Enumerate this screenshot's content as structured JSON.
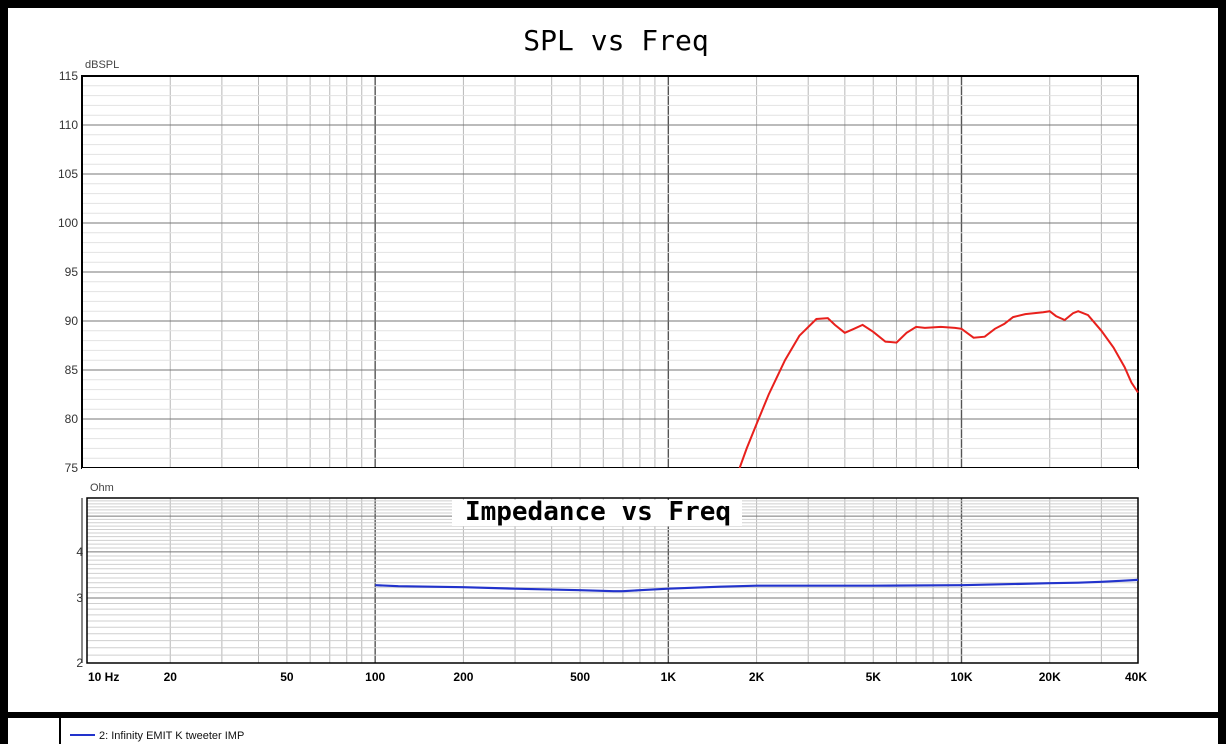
{
  "chart_data": [
    {
      "type": "line",
      "title": "SPL vs Freq",
      "ylabel": "dBSPL",
      "xscale": "log",
      "xlim": [
        10,
        40000
      ],
      "ylim": [
        75,
        115
      ],
      "yticks": [
        115,
        110,
        105,
        100,
        95,
        90,
        85,
        80,
        75
      ],
      "grid": true,
      "series": [
        {
          "color": "#e8201c",
          "x": [
            1750,
            1850,
            2000,
            2200,
            2500,
            2800,
            3200,
            3500,
            3700,
            4000,
            4300,
            4600,
            5000,
            5500,
            6000,
            6500,
            7000,
            7500,
            8500,
            9500,
            10000,
            11000,
            12000,
            13000,
            14000,
            15000,
            16500,
            19000,
            20000,
            21000,
            22500,
            24000,
            25000,
            27000,
            30000,
            33000,
            36000,
            38000,
            40000
          ],
          "y": [
            75,
            77,
            79.5,
            82.5,
            86,
            88.5,
            90.2,
            90.3,
            89.6,
            88.8,
            89.2,
            89.6,
            88.9,
            87.9,
            87.8,
            88.8,
            89.4,
            89.3,
            89.4,
            89.3,
            89.2,
            88.3,
            88.4,
            89.2,
            89.7,
            90.4,
            90.7,
            90.9,
            91,
            90.5,
            90.1,
            90.8,
            91,
            90.6,
            89,
            87.3,
            85.3,
            83.7,
            82.7
          ]
        }
      ]
    },
    {
      "type": "line",
      "title": "Impedance vs Freq",
      "ylabel": "Ohm",
      "xscale": "log",
      "xlim": [
        10,
        40000
      ],
      "yscale": "log",
      "ylim": [
        2,
        5.6
      ],
      "yticks": [
        4,
        3,
        2
      ],
      "xticks": [
        "10 Hz",
        "20",
        "50",
        "100",
        "200",
        "500",
        "1K",
        "2K",
        "5K",
        "10K",
        "20K",
        "40K"
      ],
      "grid": true,
      "series": [
        {
          "color": "#2233cc",
          "x": [
            100,
            120,
            200,
            300,
            500,
            650,
            700,
            800,
            1000,
            1500,
            2000,
            5000,
            10000,
            20000,
            25000,
            30000,
            35000,
            40000
          ],
          "y": [
            3.25,
            3.23,
            3.21,
            3.18,
            3.15,
            3.13,
            3.13,
            3.15,
            3.18,
            3.22,
            3.24,
            3.24,
            3.25,
            3.29,
            3.3,
            3.32,
            3.34,
            3.36
          ]
        }
      ]
    }
  ],
  "legend": {
    "entries": [
      {
        "label": "2: Infinity EMIT K tweeter IMP",
        "color": "#2233cc"
      }
    ]
  }
}
